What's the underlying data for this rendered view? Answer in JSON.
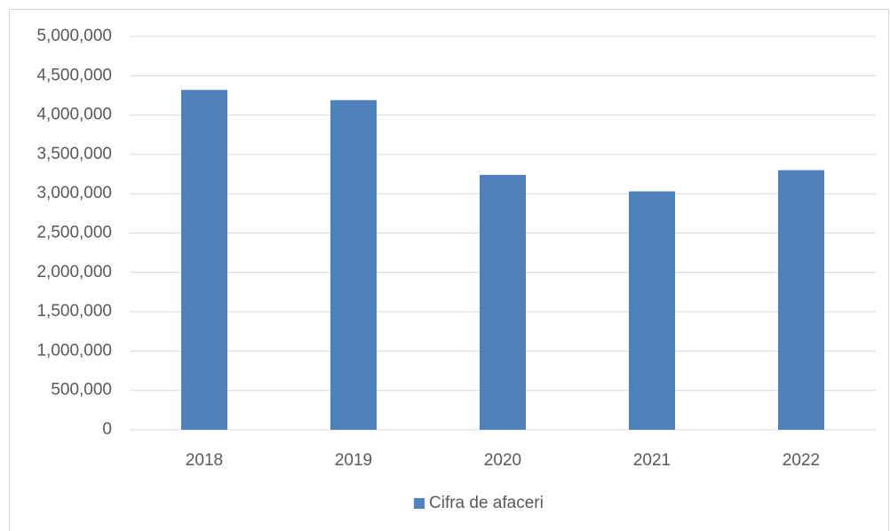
{
  "chart_data": {
    "type": "bar",
    "categories": [
      "2018",
      "2019",
      "2020",
      "2021",
      "2022"
    ],
    "series": [
      {
        "name": "Cifra de afaceri",
        "color": "#4f81bd",
        "values": [
          4320000,
          4190000,
          3240000,
          3030000,
          3300000
        ]
      }
    ],
    "ylim": [
      0,
      5000000
    ],
    "yticks": [
      0,
      {
        "value": 500000,
        "label": "500,000"
      },
      {
        "value": 1000000,
        "label": "1,000,000"
      },
      {
        "value": 1500000,
        "label": "1,500,000"
      },
      {
        "value": 2000000,
        "label": "2,000,000"
      },
      {
        "value": 2500000,
        "label": "2,500,000"
      },
      {
        "value": 3000000,
        "label": "3,000,000"
      },
      {
        "value": 3500000,
        "label": "3,500,000"
      },
      {
        "value": 4000000,
        "label": "4,000,000"
      },
      {
        "value": 4500000,
        "label": "4,500,000"
      },
      {
        "value": 5000000,
        "label": "5,000,000"
      }
    ],
    "grid": true,
    "legend": "bottom"
  }
}
